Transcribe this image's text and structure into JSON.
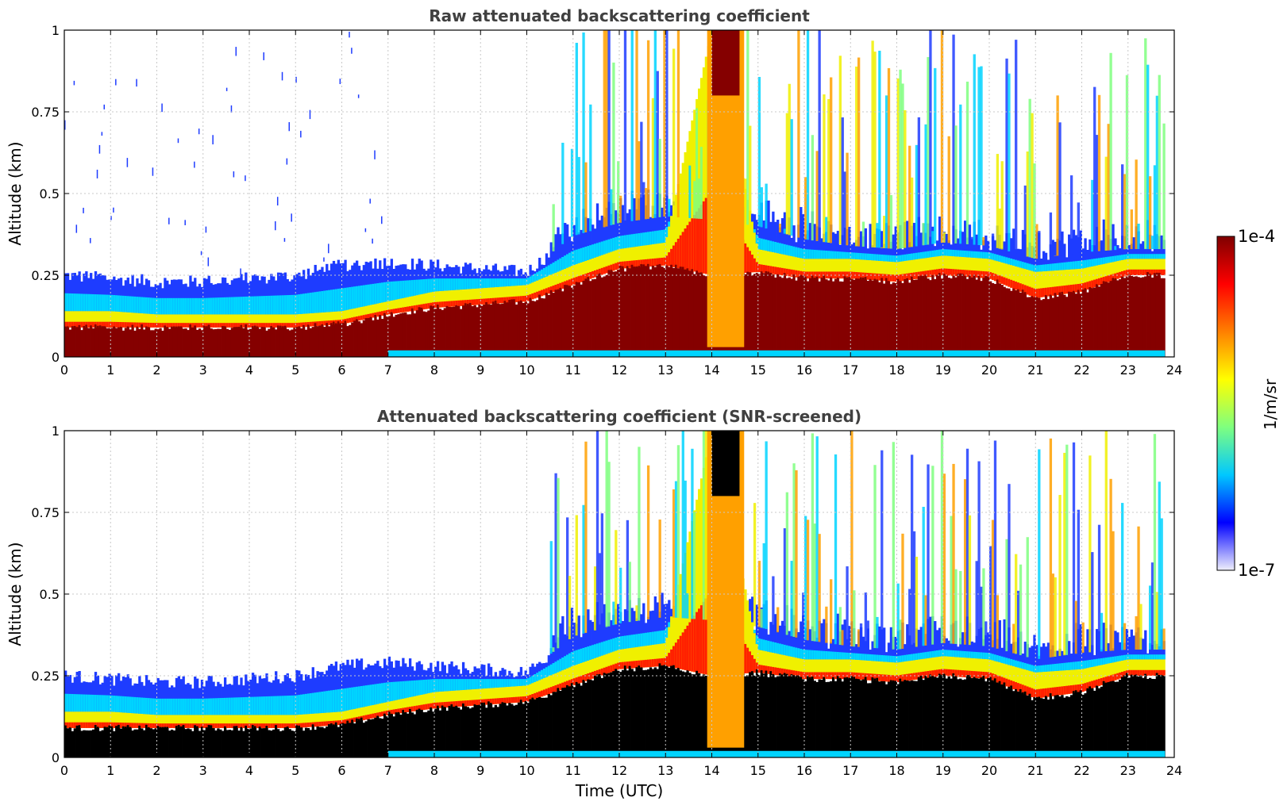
{
  "chart_data": [
    {
      "type": "heatmap",
      "title": "Raw attenuated backscattering coefficient",
      "xlabel": "",
      "ylabel": "Altitude (km)",
      "xlim": [
        0,
        24
      ],
      "ylim": [
        0,
        1
      ],
      "x_ticks": [
        "0",
        "1",
        "2",
        "3",
        "4",
        "5",
        "6",
        "7",
        "8",
        "9",
        "10",
        "11",
        "12",
        "13",
        "14",
        "15",
        "16",
        "17",
        "18",
        "19",
        "20",
        "21",
        "22",
        "23",
        "24"
      ],
      "y_ticks": [
        "0",
        "0.25",
        "0.5",
        "0.75",
        "1"
      ],
      "grid": true,
      "layers": [
        {
          "value_band": "high (dark red)",
          "x": [
            0,
            1,
            2,
            3,
            4,
            5,
            6,
            7,
            8,
            9,
            10,
            11,
            12,
            13,
            14,
            15,
            16,
            17,
            18,
            19,
            20,
            21,
            22,
            23,
            23.8
          ],
          "top_km": [
            0.09,
            0.09,
            0.09,
            0.09,
            0.09,
            0.09,
            0.1,
            0.13,
            0.15,
            0.16,
            0.17,
            0.22,
            0.27,
            0.28,
            0.25,
            0.26,
            0.24,
            0.24,
            0.23,
            0.25,
            0.24,
            0.18,
            0.2,
            0.25,
            0.25
          ]
        },
        {
          "value_band": "mid (yellow-red)",
          "x": [
            0,
            1,
            2,
            3,
            4,
            5,
            6,
            7,
            8,
            9,
            10,
            11,
            12,
            13,
            14,
            15,
            16,
            17,
            18,
            19,
            20,
            21,
            22,
            23,
            23.8
          ],
          "top_km": [
            0.14,
            0.14,
            0.13,
            0.13,
            0.13,
            0.13,
            0.14,
            0.17,
            0.2,
            0.21,
            0.22,
            0.28,
            0.33,
            0.35,
            1.0,
            0.33,
            0.3,
            0.3,
            0.29,
            0.31,
            0.3,
            0.26,
            0.27,
            0.3,
            0.3
          ]
        },
        {
          "value_band": "low (blue)",
          "x": [
            0,
            1,
            2,
            3,
            4,
            5,
            6,
            7,
            8,
            9,
            10,
            11,
            12,
            13,
            14,
            15,
            16,
            17,
            18,
            19,
            20,
            21,
            22,
            23,
            23.8
          ],
          "top_km": [
            0.25,
            0.24,
            0.23,
            0.23,
            0.24,
            0.25,
            0.28,
            0.29,
            0.28,
            0.27,
            0.26,
            0.37,
            0.41,
            0.43,
            0.42,
            0.4,
            0.36,
            0.34,
            0.33,
            0.35,
            0.34,
            0.3,
            0.32,
            0.33,
            0.33
          ]
        }
      ]
    },
    {
      "type": "heatmap",
      "title": "Attenuated backscattering coefficient (SNR-screened)",
      "xlabel": "Time (UTC)",
      "ylabel": "Altitude (km)",
      "xlim": [
        0,
        24
      ],
      "ylim": [
        0,
        1
      ],
      "x_ticks": [
        "0",
        "1",
        "2",
        "3",
        "4",
        "5",
        "6",
        "7",
        "8",
        "9",
        "10",
        "11",
        "12",
        "13",
        "14",
        "15",
        "16",
        "17",
        "18",
        "19",
        "20",
        "21",
        "22",
        "23",
        "24"
      ],
      "y_ticks": [
        "0",
        "0.25",
        "0.5",
        "0.75",
        "1"
      ],
      "grid": true,
      "layers": [
        {
          "value_band": "saturated (black)",
          "x": [
            0,
            1,
            2,
            3,
            4,
            5,
            6,
            7,
            8,
            9,
            10,
            11,
            12,
            13,
            14,
            15,
            16,
            17,
            18,
            19,
            20,
            21,
            22,
            23,
            23.8
          ],
          "top_km": [
            0.09,
            0.09,
            0.09,
            0.09,
            0.09,
            0.09,
            0.1,
            0.13,
            0.15,
            0.16,
            0.17,
            0.22,
            0.27,
            0.28,
            0.25,
            0.26,
            0.24,
            0.24,
            0.23,
            0.25,
            0.24,
            0.18,
            0.2,
            0.25,
            0.25
          ]
        },
        {
          "value_band": "mid (yellow-red)",
          "x": [
            0,
            1,
            2,
            3,
            4,
            5,
            6,
            7,
            8,
            9,
            10,
            11,
            12,
            13,
            14,
            15,
            16,
            17,
            18,
            19,
            20,
            21,
            22,
            23,
            23.8
          ],
          "top_km": [
            0.14,
            0.14,
            0.13,
            0.13,
            0.13,
            0.13,
            0.14,
            0.17,
            0.2,
            0.21,
            0.22,
            0.28,
            0.33,
            0.35,
            1.0,
            0.33,
            0.3,
            0.3,
            0.29,
            0.31,
            0.3,
            0.26,
            0.27,
            0.3,
            0.3
          ]
        },
        {
          "value_band": "low (blue)",
          "x": [
            0,
            1,
            2,
            3,
            4,
            5,
            6,
            7,
            8,
            9,
            10,
            11,
            12,
            13,
            14,
            15,
            16,
            17,
            18,
            19,
            20,
            21,
            22,
            23,
            23.8
          ],
          "top_km": [
            0.25,
            0.24,
            0.23,
            0.23,
            0.24,
            0.25,
            0.28,
            0.29,
            0.28,
            0.27,
            0.26,
            0.37,
            0.41,
            0.43,
            0.42,
            0.4,
            0.36,
            0.34,
            0.33,
            0.35,
            0.34,
            0.3,
            0.32,
            0.33,
            0.33
          ]
        }
      ]
    }
  ],
  "colorbar": {
    "max_label": "1e-4",
    "min_label": "1e-7",
    "label": "1/m/sr",
    "colors": [
      "#efeffc",
      "#0000ff",
      "#00c8ff",
      "#7fff7f",
      "#ffff00",
      "#ff8000",
      "#ff0000",
      "#7f0000"
    ]
  },
  "colors": {
    "saturated": "#000000",
    "dark_red": "#850000",
    "yellow": "#f0f000",
    "orange": "#ffa000",
    "grid": "#c8c8c8"
  }
}
